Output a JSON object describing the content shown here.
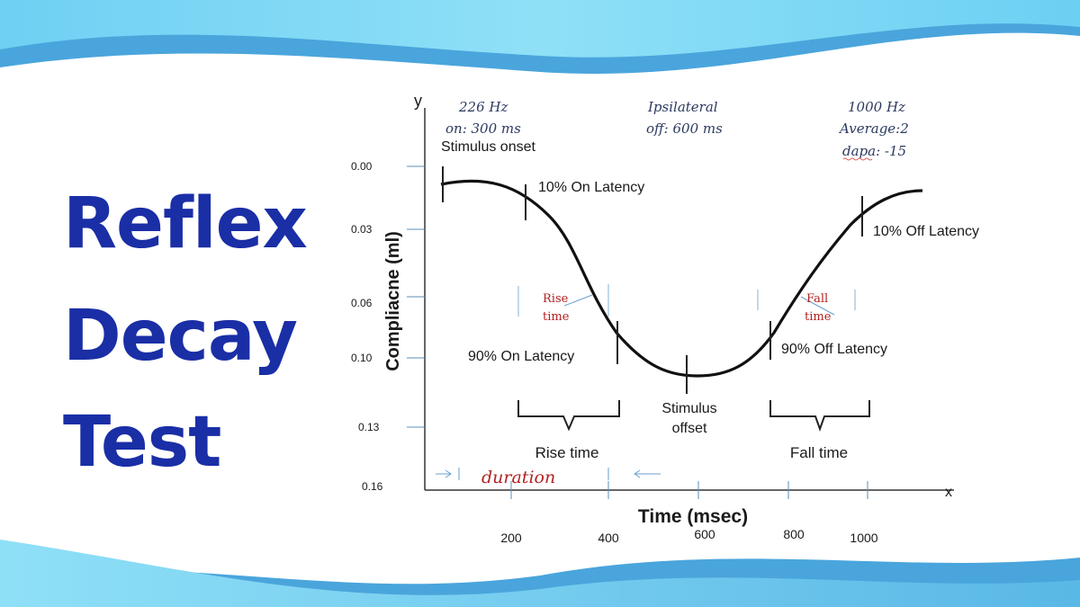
{
  "title": [
    "Reflex",
    "Decay",
    "Test"
  ],
  "diagram": {
    "y_axis_symbol": "y",
    "x_axis_symbol": "x",
    "y_axis_label": "Compliacne (ml)",
    "x_axis_label": "Time (msec)",
    "y_ticks": [
      "0.00",
      "0.03",
      "0.06",
      "0.10",
      "0.13",
      "0.16"
    ],
    "x_ticks": [
      "200",
      "400",
      "600",
      "800",
      "1000"
    ],
    "params_left": [
      "226 Hz",
      "on: 300 ms"
    ],
    "params_center": [
      "Ipsilateral",
      "off: 600 ms"
    ],
    "params_right": [
      "1000 Hz",
      "Average:2",
      "dapa: -15"
    ],
    "labels": {
      "stimulus_onset": "Stimulus onset",
      "on_latency_10": "10% On Latency",
      "off_latency_10": "10% Off Latency",
      "on_latency_90": "90% On Latency",
      "off_latency_90": "90% Off Latency",
      "stimulus_offset": [
        "Stimulus",
        "offset"
      ],
      "rise_time": "Rise time",
      "fall_time": "Fall time",
      "rise_time_red": [
        "Rise",
        "time"
      ],
      "fall_time_red": [
        "Fall",
        "time"
      ],
      "duration": "duration"
    },
    "colors": {
      "title": "#1a2ea6",
      "accent_red": "#b22222",
      "wave_light": "#7fd8f5",
      "wave_dark": "#4a9fd9"
    }
  }
}
